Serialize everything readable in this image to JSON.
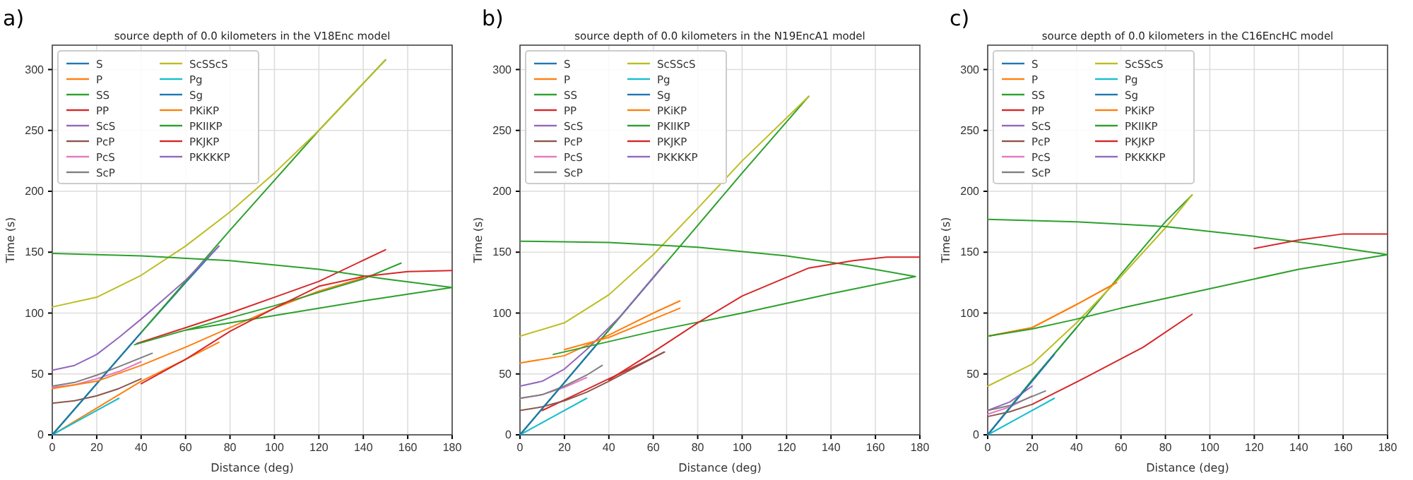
{
  "chart_data": [
    {
      "type": "line",
      "title": "source depth of 0.0 kilometers in the V18Enc model",
      "xlabel": "Distance (deg)",
      "ylabel": "Time (s)",
      "annotations": [
        "a)"
      ],
      "xlim": [
        0,
        180
      ],
      "xticks": [
        0,
        20,
        40,
        60,
        80,
        100,
        120,
        140,
        160,
        180
      ],
      "ylim": [
        0,
        320
      ],
      "yticks": [
        0,
        50,
        100,
        150,
        200,
        250,
        300
      ],
      "grid": true,
      "legend": "top left",
      "series": [
        {
          "name": "S",
          "color": "#1f77b4",
          "x": [
            0,
            20,
            40,
            60,
            75
          ],
          "values": [
            0,
            42,
            84,
            125,
            155
          ]
        },
        {
          "name": "P",
          "color": "#ff7f0e",
          "x": [
            0,
            20,
            40,
            60,
            75
          ],
          "values": [
            0,
            22,
            44,
            62,
            76
          ]
        },
        {
          "name": "SS",
          "color": "#2ca02c",
          "x": [
            0,
            40,
            80,
            120,
            150
          ],
          "values": [
            0,
            84,
            168,
            250,
            308
          ]
        },
        {
          "name": "PP",
          "color": "#d62728",
          "x": [
            38,
            60,
            80,
            100,
            120,
            150
          ],
          "values": [
            75,
            88,
            100,
            113,
            126,
            152
          ]
        },
        {
          "name": "ScS",
          "color": "#9467bd",
          "x": [
            0,
            10,
            20,
            30,
            40,
            60,
            75
          ],
          "values": [
            53,
            57,
            66,
            80,
            95,
            127,
            155
          ]
        },
        {
          "name": "PcP",
          "color": "#8c564b",
          "x": [
            0,
            10,
            20,
            30,
            40
          ],
          "values": [
            26,
            28,
            32,
            38,
            46
          ]
        },
        {
          "name": "PcS",
          "color": "#e377c2",
          "x": [
            0,
            10,
            20,
            30,
            40
          ],
          "values": [
            39,
            41,
            46,
            52,
            60
          ]
        },
        {
          "name": "ScP",
          "color": "#7f7f7f",
          "x": [
            0,
            10,
            20,
            30,
            45
          ],
          "values": [
            40,
            43,
            49,
            56,
            67
          ]
        },
        {
          "name": "ScSScS",
          "color": "#bcbd22",
          "x": [
            0,
            20,
            40,
            60,
            80,
            100,
            120,
            150
          ],
          "values": [
            105,
            113,
            131,
            155,
            183,
            215,
            250,
            308
          ]
        },
        {
          "name": "Pg",
          "color": "#17becf",
          "x": [
            0,
            15,
            30
          ],
          "values": [
            0,
            15,
            30
          ]
        },
        {
          "name": "Sg",
          "color": "#1f77b4",
          "x": [
            0,
            20,
            40
          ],
          "values": [
            0,
            42,
            84
          ]
        },
        {
          "name": "PKiKP",
          "color": "#ff7f0e",
          "x": [
            0,
            20,
            40,
            60,
            80,
            100,
            120,
            140
          ],
          "values": [
            38,
            44,
            57,
            72,
            88,
            104,
            118,
            129
          ]
        },
        {
          "name": "PKIIKP",
          "color": "#2ca02c",
          "x": [
            0,
            40,
            80,
            120,
            150,
            180,
            140,
            100,
            60,
            37,
            60,
            100,
            140,
            157
          ],
          "values": [
            149,
            147,
            143,
            136,
            128,
            121,
            110,
            98,
            86,
            74,
            86,
            106,
            128,
            141
          ]
        },
        {
          "name": "PKJKP",
          "color": "#d62728",
          "x": [
            40,
            60,
            80,
            100,
            120,
            140,
            160,
            180
          ],
          "values": [
            42,
            62,
            85,
            104,
            122,
            130,
            134,
            135
          ]
        },
        {
          "name": "PKKKKP",
          "color": "#9467bd"
        }
      ]
    },
    {
      "type": "line",
      "title": "source depth of 0.0 kilometers in the N19EncA1 model",
      "xlabel": "Distance (deg)",
      "ylabel": "Time (s)",
      "annotations": [
        "b)"
      ],
      "xlim": [
        0,
        180
      ],
      "xticks": [
        0,
        20,
        40,
        60,
        80,
        100,
        120,
        140,
        160,
        180
      ],
      "ylim": [
        0,
        320
      ],
      "yticks": [
        0,
        50,
        100,
        150,
        200,
        250,
        300
      ],
      "grid": true,
      "legend": "top left",
      "series": [
        {
          "name": "S",
          "color": "#1f77b4",
          "x": [
            0,
            20,
            40,
            65
          ],
          "values": [
            0,
            43,
            86,
            140
          ]
        },
        {
          "name": "P",
          "color": "#ff7f0e",
          "x": [
            0,
            20,
            40,
            60,
            72
          ],
          "values": [
            59,
            65,
            82,
            100,
            110
          ]
        },
        {
          "name": "SS",
          "color": "#2ca02c",
          "x": [
            0,
            40,
            80,
            100,
            130
          ],
          "values": [
            0,
            86,
            172,
            215,
            278
          ]
        },
        {
          "name": "PP",
          "color": "#d62728",
          "x": [
            10,
            25,
            40,
            55,
            65
          ],
          "values": [
            20,
            33,
            46,
            59,
            68
          ]
        },
        {
          "name": "ScS",
          "color": "#9467bd",
          "x": [
            0,
            10,
            20,
            30,
            45,
            65
          ],
          "values": [
            40,
            44,
            54,
            70,
            97,
            140
          ]
        },
        {
          "name": "PcP",
          "color": "#8c564b",
          "x": [
            0,
            10,
            20,
            30,
            40,
            65
          ],
          "values": [
            20,
            23,
            28,
            35,
            44,
            68
          ]
        },
        {
          "name": "PcS",
          "color": "#e377c2",
          "x": [
            0,
            10,
            20,
            30
          ],
          "values": [
            30,
            33,
            39,
            47
          ]
        },
        {
          "name": "ScP",
          "color": "#7f7f7f",
          "x": [
            0,
            10,
            20,
            30,
            37
          ],
          "values": [
            30,
            33,
            40,
            49,
            57
          ]
        },
        {
          "name": "ScSScS",
          "color": "#bcbd22",
          "x": [
            0,
            20,
            40,
            60,
            80,
            100,
            130
          ],
          "values": [
            81,
            92,
            115,
            148,
            186,
            225,
            278
          ]
        },
        {
          "name": "Pg",
          "color": "#17becf",
          "x": [
            0,
            15,
            30
          ],
          "values": [
            0,
            15,
            30
          ]
        },
        {
          "name": "Sg",
          "color": "#1f77b4",
          "x": [
            0,
            20,
            35
          ],
          "values": [
            0,
            43,
            75
          ]
        },
        {
          "name": "PKiKP",
          "color": "#ff7f0e",
          "x": [
            20,
            40,
            60,
            72
          ],
          "values": [
            70,
            80,
            95,
            104
          ]
        },
        {
          "name": "PKIIKP",
          "color": "#2ca02c",
          "x": [
            0,
            40,
            80,
            120,
            150,
            178,
            140,
            100,
            60,
            15
          ],
          "values": [
            159,
            158,
            154,
            147,
            139,
            130,
            116,
            100,
            85,
            66
          ]
        },
        {
          "name": "PKJKP",
          "color": "#d62728",
          "x": [
            40,
            60,
            80,
            100,
            130,
            150,
            165,
            180
          ],
          "values": [
            45,
            68,
            92,
            114,
            137,
            143,
            146,
            146
          ]
        },
        {
          "name": "PKKKKP",
          "color": "#9467bd"
        }
      ]
    },
    {
      "type": "line",
      "title": "source depth of 0.0 kilometers in the C16EncHC model",
      "xlabel": "Distance (deg)",
      "ylabel": "Time (s)",
      "annotations": [
        "c)"
      ],
      "xlim": [
        0,
        180
      ],
      "xticks": [
        0,
        20,
        40,
        60,
        80,
        100,
        120,
        140,
        160,
        180
      ],
      "ylim": [
        0,
        320
      ],
      "yticks": [
        0,
        50,
        100,
        150,
        200,
        250,
        300
      ],
      "grid": true,
      "legend": "top left",
      "series": [
        {
          "name": "S",
          "color": "#1f77b4",
          "x": [
            0,
            20,
            40
          ],
          "values": [
            0,
            45,
            88
          ]
        },
        {
          "name": "P",
          "color": "#ff7f0e",
          "x": [
            0,
            20,
            40,
            58
          ],
          "values": [
            81,
            88,
            107,
            125
          ]
        },
        {
          "name": "SS",
          "color": "#2ca02c",
          "x": [
            0,
            20,
            40,
            60,
            80,
            92
          ],
          "values": [
            0,
            45,
            88,
            132,
            175,
            197
          ]
        },
        {
          "name": "PP",
          "color": "#d62728",
          "x": [
            20,
            45,
            70,
            92
          ],
          "values": [
            25,
            48,
            72,
            99
          ]
        },
        {
          "name": "ScS",
          "color": "#9467bd",
          "x": [
            0,
            10,
            20
          ],
          "values": [
            20,
            27,
            40
          ]
        },
        {
          "name": "PcP",
          "color": "#8c564b",
          "x": [
            0,
            10,
            20
          ],
          "values": [
            15,
            19,
            25
          ]
        },
        {
          "name": "PcS",
          "color": "#e377c2",
          "x": [
            0,
            10,
            20
          ],
          "values": [
            17,
            23,
            32
          ]
        },
        {
          "name": "ScP",
          "color": "#7f7f7f",
          "x": [
            0,
            10,
            26
          ],
          "values": [
            20,
            24,
            36
          ]
        },
        {
          "name": "ScSScS",
          "color": "#bcbd22",
          "x": [
            0,
            20,
            40,
            60,
            80,
            92
          ],
          "values": [
            40,
            58,
            92,
            130,
            170,
            197
          ]
        },
        {
          "name": "Pg",
          "color": "#17becf",
          "x": [
            0,
            15,
            30
          ],
          "values": [
            0,
            15,
            30
          ]
        },
        {
          "name": "Sg",
          "color": "#1f77b4",
          "x": [
            0,
            15,
            30
          ],
          "values": [
            0,
            33,
            66
          ]
        },
        {
          "name": "PKiKP",
          "color": "#ff7f0e",
          "x": [
            0,
            20,
            40,
            58
          ],
          "values": [
            81,
            88,
            107,
            125
          ]
        },
        {
          "name": "PKIIKP",
          "color": "#2ca02c",
          "x": [
            0,
            40,
            80,
            120,
            150,
            180,
            140,
            100,
            60,
            40,
            20,
            0
          ],
          "values": [
            177,
            175,
            171,
            163,
            156,
            148,
            136,
            120,
            104,
            95,
            87,
            81
          ]
        },
        {
          "name": "PKJKP",
          "color": "#d62728",
          "x": [
            120,
            140,
            160,
            180
          ],
          "values": [
            153,
            160,
            165,
            165
          ]
        },
        {
          "name": "PKKKKP",
          "color": "#9467bd"
        }
      ]
    }
  ]
}
